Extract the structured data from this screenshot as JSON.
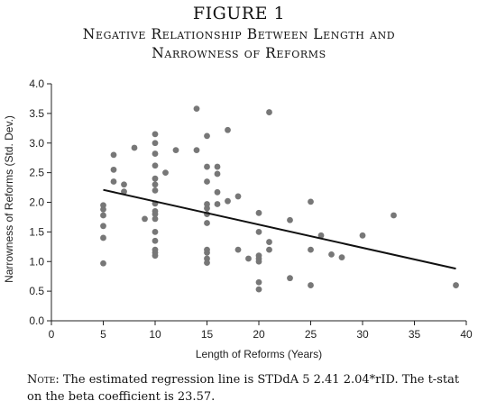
{
  "figure": {
    "label": "FIGURE 1",
    "title_line1": "Negative Relationship Between Length and",
    "title_line2": "Narrowness of Reforms"
  },
  "chart_data": {
    "type": "scatter",
    "xlabel": "Length of Reforms (Years)",
    "ylabel": "Narrowness of Reforms (Std. Dev.)",
    "xlim": [
      0,
      40
    ],
    "ylim": [
      0,
      4
    ],
    "xticks": [
      0,
      5,
      10,
      15,
      20,
      25,
      30,
      35,
      40
    ],
    "yticks": [
      0.0,
      0.5,
      1.0,
      1.5,
      2.0,
      2.5,
      3.0,
      3.5,
      4.0
    ],
    "grid": false,
    "point_color": "#777777",
    "line_color": "#111111",
    "points": [
      {
        "x": 5,
        "y": 1.95
      },
      {
        "x": 5,
        "y": 1.88
      },
      {
        "x": 5,
        "y": 1.78
      },
      {
        "x": 5,
        "y": 1.6
      },
      {
        "x": 5,
        "y": 1.4
      },
      {
        "x": 5,
        "y": 0.97
      },
      {
        "x": 6,
        "y": 2.8
      },
      {
        "x": 6,
        "y": 2.55
      },
      {
        "x": 6,
        "y": 2.35
      },
      {
        "x": 7,
        "y": 2.3
      },
      {
        "x": 7,
        "y": 2.18
      },
      {
        "x": 8,
        "y": 2.92
      },
      {
        "x": 9,
        "y": 1.72
      },
      {
        "x": 10,
        "y": 3.15
      },
      {
        "x": 10,
        "y": 3.0
      },
      {
        "x": 10,
        "y": 2.82
      },
      {
        "x": 10,
        "y": 2.62
      },
      {
        "x": 10,
        "y": 2.4
      },
      {
        "x": 10,
        "y": 2.3
      },
      {
        "x": 10,
        "y": 2.2
      },
      {
        "x": 10,
        "y": 1.98
      },
      {
        "x": 10,
        "y": 1.85
      },
      {
        "x": 10,
        "y": 1.8
      },
      {
        "x": 10,
        "y": 1.72
      },
      {
        "x": 10,
        "y": 1.5
      },
      {
        "x": 10,
        "y": 1.35
      },
      {
        "x": 10,
        "y": 1.2
      },
      {
        "x": 10,
        "y": 1.15
      },
      {
        "x": 10,
        "y": 1.1
      },
      {
        "x": 11,
        "y": 2.5
      },
      {
        "x": 12,
        "y": 2.88
      },
      {
        "x": 14,
        "y": 3.58
      },
      {
        "x": 14,
        "y": 2.88
      },
      {
        "x": 15,
        "y": 3.12
      },
      {
        "x": 15,
        "y": 2.6
      },
      {
        "x": 15,
        "y": 2.35
      },
      {
        "x": 15,
        "y": 1.97
      },
      {
        "x": 15,
        "y": 1.9
      },
      {
        "x": 15,
        "y": 1.8
      },
      {
        "x": 15,
        "y": 1.65
      },
      {
        "x": 15,
        "y": 1.2
      },
      {
        "x": 15,
        "y": 1.15
      },
      {
        "x": 15,
        "y": 1.05
      },
      {
        "x": 15,
        "y": 0.98
      },
      {
        "x": 16,
        "y": 2.6
      },
      {
        "x": 16,
        "y": 2.48
      },
      {
        "x": 16,
        "y": 2.17
      },
      {
        "x": 16,
        "y": 1.97
      },
      {
        "x": 17,
        "y": 3.22
      },
      {
        "x": 17,
        "y": 2.02
      },
      {
        "x": 18,
        "y": 2.1
      },
      {
        "x": 18,
        "y": 1.2
      },
      {
        "x": 19,
        "y": 1.05
      },
      {
        "x": 20,
        "y": 1.82
      },
      {
        "x": 20,
        "y": 1.5
      },
      {
        "x": 20,
        "y": 1.1
      },
      {
        "x": 20,
        "y": 1.05
      },
      {
        "x": 20,
        "y": 1.0
      },
      {
        "x": 20,
        "y": 0.65
      },
      {
        "x": 20,
        "y": 0.53
      },
      {
        "x": 21,
        "y": 3.52
      },
      {
        "x": 21,
        "y": 1.33
      },
      {
        "x": 21,
        "y": 1.2
      },
      {
        "x": 23,
        "y": 1.7
      },
      {
        "x": 23,
        "y": 0.72
      },
      {
        "x": 25,
        "y": 2.01
      },
      {
        "x": 25,
        "y": 1.2
      },
      {
        "x": 25,
        "y": 0.6
      },
      {
        "x": 26,
        "y": 1.44
      },
      {
        "x": 27,
        "y": 1.12
      },
      {
        "x": 28,
        "y": 1.07
      },
      {
        "x": 30,
        "y": 1.44
      },
      {
        "x": 33,
        "y": 1.78
      },
      {
        "x": 39,
        "y": 0.6
      }
    ],
    "regression_line": {
      "x": [
        5,
        39
      ],
      "y": [
        2.21,
        0.88
      ]
    }
  },
  "note": {
    "lead": "Note:",
    "line1": "The estimated regression line is STDdA 5 2.41 2.04*rID. The t-stat",
    "line2": "on the beta coefficient is 23.57."
  }
}
